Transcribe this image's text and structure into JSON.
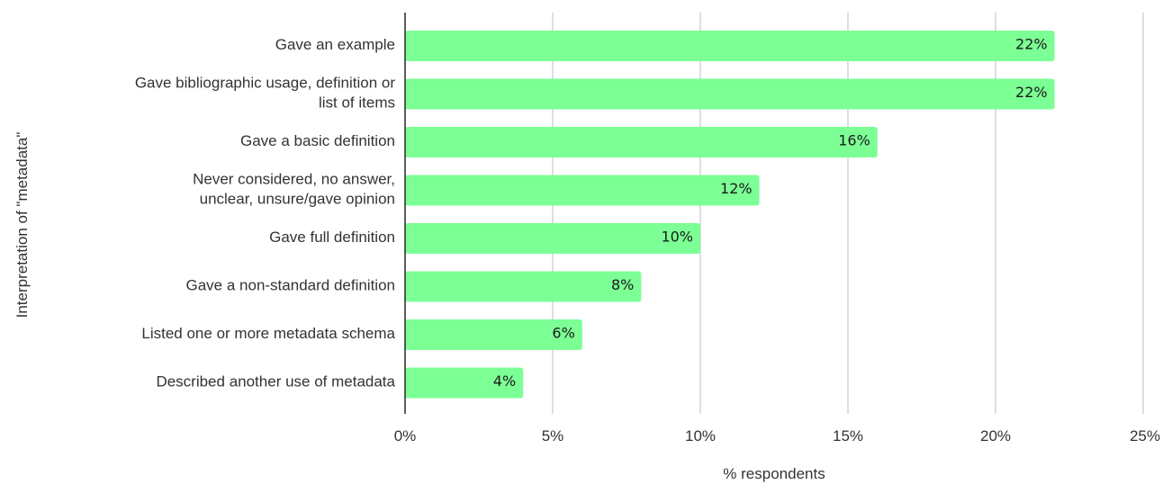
{
  "chart_data": {
    "type": "bar",
    "orientation": "horizontal",
    "categories": [
      "Gave an example",
      "Gave bibliographic usage, definition or list of items",
      "Gave a basic definition",
      "Never considered, no answer, unclear, unsure/gave opinion",
      "Gave full definition",
      "Gave a non-standard definition",
      "Listed one or more metadata schema",
      "Described another use of metadata"
    ],
    "category_lines": [
      [
        "Gave an example"
      ],
      [
        "Gave bibliographic usage, definition or",
        "list of items"
      ],
      [
        "Gave a basic definition"
      ],
      [
        "Never considered, no answer,",
        "unclear, unsure/gave opinion"
      ],
      [
        "Gave full definition"
      ],
      [
        "Gave a non-standard definition"
      ],
      [
        "Listed one or more metadata schema"
      ],
      [
        "Described another use of metadata"
      ]
    ],
    "values": [
      22,
      22,
      16,
      12,
      10,
      8,
      6,
      4
    ],
    "data_labels": [
      "22%",
      "22%",
      "16%",
      "12%",
      "10%",
      "8%",
      "6%",
      "4%"
    ],
    "xlim": [
      0,
      25
    ],
    "xticks": [
      0,
      5,
      10,
      15,
      20,
      25
    ],
    "xtick_labels": [
      "0%",
      "5%",
      "10%",
      "15%",
      "20%",
      "25%"
    ],
    "xlabel": "% respondents",
    "ylabel": "Interpretation of \"metadata\"",
    "title": "",
    "grid": "vertical",
    "legend": "none",
    "colors": {
      "bar": "#7cff95",
      "grid": "#c8c8c8",
      "axis": "#333333",
      "text": "#333333"
    }
  }
}
